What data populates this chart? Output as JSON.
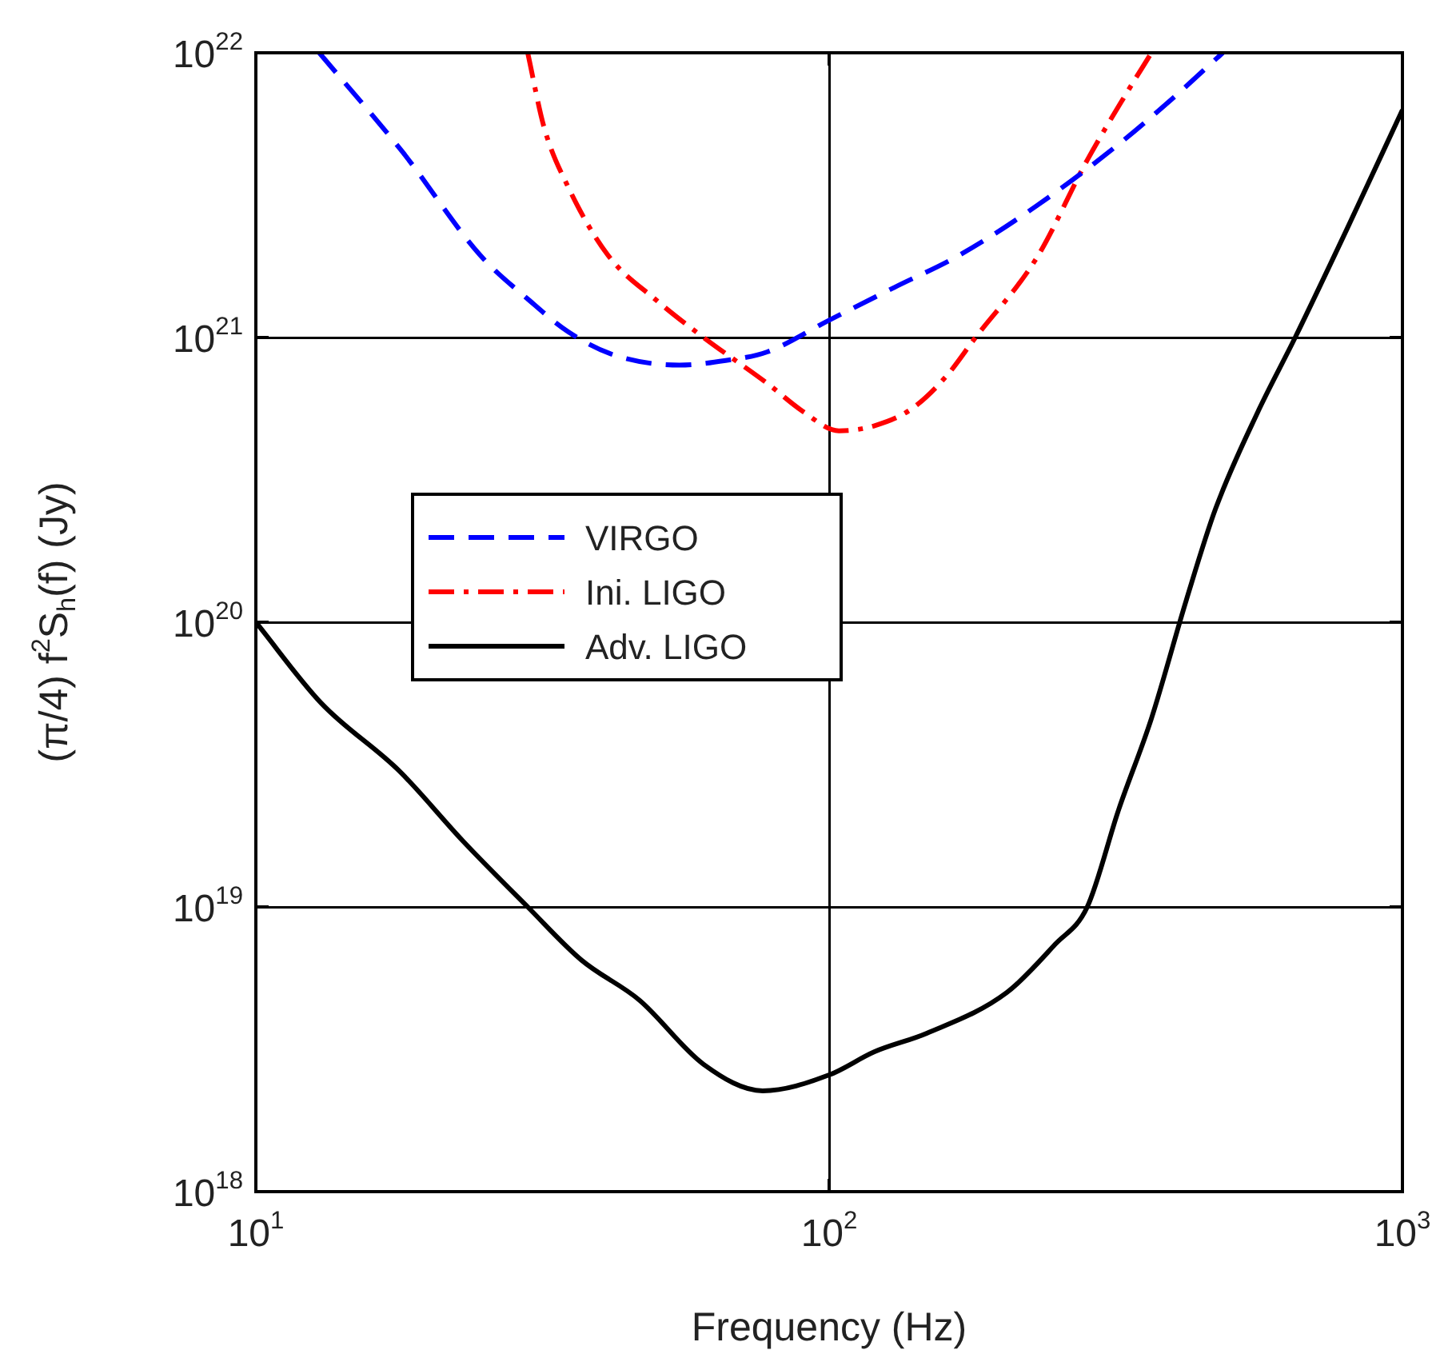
{
  "chart_data": {
    "type": "line",
    "xlabel": "Frequency (Hz)",
    "ylabel": "(π/4) f$^{2}$S$_{h}$(f) (Jy)",
    "log": "xy",
    "grid": true,
    "legend": "center left",
    "marker": "none",
    "xlim": [
      10,
      1000
    ],
    "xticks": [
      {
        "value": 10,
        "label": "10$^{1}$"
      },
      {
        "value": 100,
        "label": "10$^{2}$"
      },
      {
        "value": 1000,
        "label": "10$^{3}$"
      }
    ],
    "ylim": [
      1e+18,
      1e+22
    ],
    "yticks": [
      {
        "value": 1e+18,
        "label": "10$^{18}$"
      },
      {
        "value": 1e+19,
        "label": "10$^{19}$"
      },
      {
        "value": 1e+20,
        "label": "10$^{20}$"
      },
      {
        "value": 1e+21,
        "label": "10$^{21}$"
      },
      {
        "value": 1e+22,
        "label": "10$^{22}$"
      }
    ],
    "series": [
      {
        "name": "VIRGO",
        "color": "#0000ff",
        "line_style": "dashed",
        "x": [
          12.9,
          18,
          24.6,
          30,
          35,
          42,
          54.8,
          66,
          78,
          100,
          130,
          169,
          230,
          321,
          400,
          486
        ],
        "values": [
          1e+22,
          4.5e+21,
          1.95e+21,
          1.35e+21,
          1.05e+21,
          8.7e+20,
          8e+20,
          8.3e+20,
          8.9e+20,
          1.15e+21,
          1.5e+21,
          1.95e+21,
          2.9e+21,
          4.8e+21,
          7e+21,
          1e+22
        ]
      },
      {
        "name": "Ini. LIGO",
        "color": "#ff0000",
        "line_style": "dashdot",
        "x": [
          29.8,
          31.8,
          35,
          41.1,
          50,
          60.4,
          78,
          90,
          104,
          120,
          139,
          160,
          180,
          230,
          282,
          330,
          365
        ],
        "values": [
          1e+22,
          5.5e+21,
          3.4e+21,
          1.95e+21,
          1.35e+21,
          1e+21,
          6.9e+20,
          5.5e+20,
          4.7e+20,
          4.9e+20,
          5.6e+20,
          7.3e+20,
          1e+21,
          1.9e+21,
          4.2e+21,
          7.2e+21,
          1e+22
        ]
      },
      {
        "name": "Adv. LIGO",
        "color": "#000000",
        "line_style": "solid",
        "x": [
          10,
          13,
          17.8,
          23,
          29.8,
          37,
          46.7,
          60.4,
          76.6,
          100,
          120,
          148,
          204,
          248,
          282,
          320,
          365,
          420,
          472,
          560,
          650,
          800,
          1000
        ],
        "values": [
          1e+20,
          5.2e+19,
          3e+19,
          1.7e+19,
          1e+19,
          6.5e+18,
          4.7e+18,
          2.8e+18,
          2.26e+18,
          2.57e+18,
          3.1e+18,
          3.6e+18,
          5e+18,
          7.4e+18,
          1e+19,
          2.2e+19,
          4.6e+19,
          1.2e+20,
          2.5e+20,
          5.5e+20,
          1e+21,
          2.4e+21,
          6.3e+21
        ]
      }
    ]
  }
}
